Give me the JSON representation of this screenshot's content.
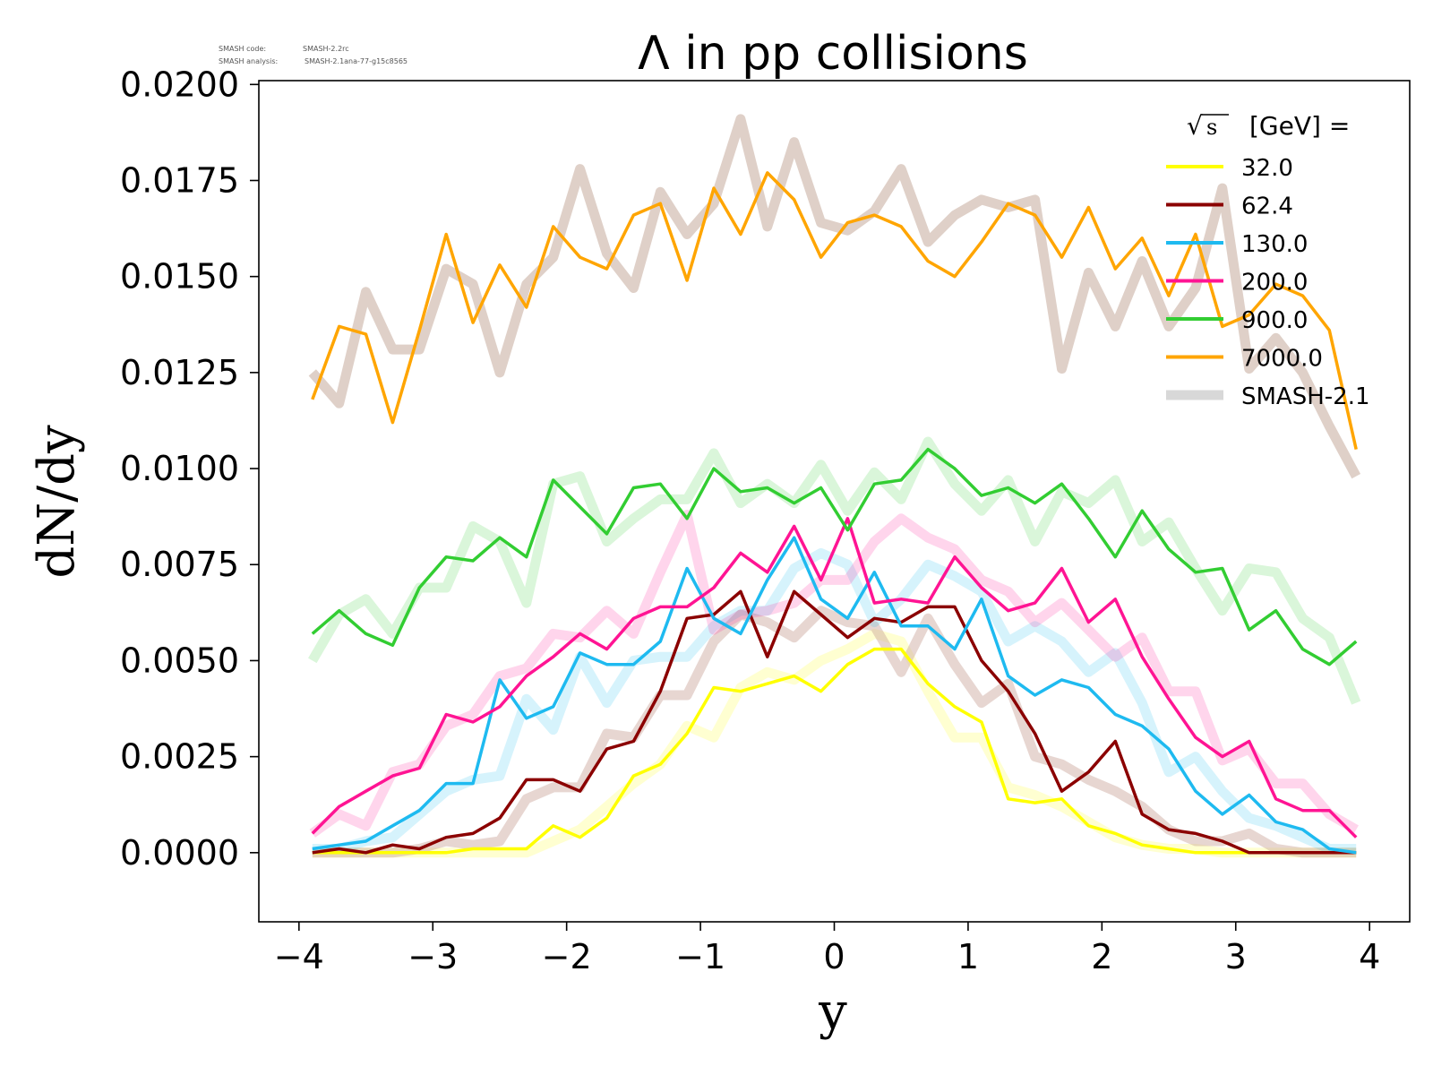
{
  "meta": {
    "code_label": "SMASH code:",
    "code_value": "SMASH-2.2rc",
    "analysis_label": "SMASH analysis:",
    "analysis_value": "SMASH-2.1ana-77-g15c8565"
  },
  "chart_data": {
    "type": "line",
    "title": "Λ in pp collisions",
    "xlabel": "y",
    "ylabel": "dN/dy",
    "xlim": [
      -4.3,
      4.3
    ],
    "ylim": [
      -0.0018,
      0.0201
    ],
    "xticks": [
      -4,
      -3,
      -2,
      -1,
      0,
      1,
      2,
      3,
      4
    ],
    "xtick_labels": [
      "−4",
      "−3",
      "−2",
      "−1",
      "0",
      "1",
      "2",
      "3",
      "4"
    ],
    "yticks": [
      0.0,
      0.0025,
      0.005,
      0.0075,
      0.01,
      0.0125,
      0.015,
      0.0175,
      0.02
    ],
    "ytick_labels": [
      "0.0000",
      "0.0025",
      "0.0050",
      "0.0075",
      "0.0100",
      "0.0125",
      "0.0150",
      "0.0175",
      "0.0200"
    ],
    "grid": false,
    "legend": {
      "placement": "top-right",
      "title_unit": "[GeV] =",
      "sqrt_symbol": "√",
      "sqrt_variable": "s",
      "reference_label": "SMASH-2.1",
      "reference_color": "#d8d8d8"
    },
    "x": [
      -3.9,
      -3.7,
      -3.5,
      -3.3,
      -3.1,
      -2.9,
      -2.7,
      -2.5,
      -2.3,
      -2.1,
      -1.9,
      -1.7,
      -1.5,
      -1.3,
      -1.1,
      -0.9,
      -0.7,
      -0.5,
      -0.3,
      -0.1,
      0.1,
      0.3,
      0.5,
      0.7,
      0.9,
      1.1,
      1.3,
      1.5,
      1.7,
      1.9,
      2.1,
      2.3,
      2.5,
      2.7,
      2.9,
      3.1,
      3.3,
      3.5,
      3.7,
      3.9
    ],
    "series": [
      {
        "name": "32.0",
        "color": "#ffff00",
        "values": [
          0.0,
          0.0,
          0.0,
          0.0,
          0.0,
          0.0,
          0.0001,
          0.0001,
          0.0001,
          0.0007,
          0.0004,
          0.0009,
          0.002,
          0.0023,
          0.0031,
          0.0043,
          0.0042,
          0.0044,
          0.0046,
          0.0042,
          0.0049,
          0.0053,
          0.0053,
          0.0044,
          0.0038,
          0.0034,
          0.0014,
          0.0013,
          0.0014,
          0.0007,
          0.0005,
          0.0002,
          0.0001,
          0.0,
          0.0,
          0.0,
          0.0,
          0.0,
          0.0,
          0.0
        ],
        "reference": [
          0.0,
          0.0,
          0.0,
          0.0,
          0.0,
          0.0,
          0.0,
          0.0,
          0.0,
          0.0003,
          0.0006,
          0.0012,
          0.0018,
          0.0023,
          0.0033,
          0.003,
          0.0043,
          0.0047,
          0.0045,
          0.005,
          0.0053,
          0.0057,
          0.0055,
          0.0042,
          0.003,
          0.003,
          0.0017,
          0.0015,
          0.0012,
          0.0008,
          0.0004,
          0.0002,
          0.0001,
          0.0001,
          0.0,
          0.0,
          0.0,
          0.0,
          0.0,
          0.0
        ]
      },
      {
        "name": "62.4",
        "color": "#8b0000",
        "values": [
          0.0,
          0.0001,
          0.0,
          0.0002,
          0.0001,
          0.0004,
          0.0005,
          0.0009,
          0.0019,
          0.0019,
          0.0016,
          0.0027,
          0.0029,
          0.0042,
          0.0061,
          0.0062,
          0.0068,
          0.0051,
          0.0068,
          0.0062,
          0.0056,
          0.0061,
          0.006,
          0.0064,
          0.0064,
          0.005,
          0.0042,
          0.0031,
          0.0016,
          0.0021,
          0.0029,
          0.001,
          0.0006,
          0.0005,
          0.0003,
          0.0,
          0.0,
          0.0,
          0.0,
          0.0
        ],
        "reference": [
          0.0,
          0.0,
          0.0,
          0.0,
          0.0001,
          0.0003,
          0.0002,
          0.0003,
          0.0014,
          0.0017,
          0.0017,
          0.0031,
          0.003,
          0.0041,
          0.0041,
          0.0055,
          0.0062,
          0.006,
          0.0056,
          0.0063,
          0.006,
          0.0059,
          0.0047,
          0.0061,
          0.0049,
          0.0039,
          0.0044,
          0.0025,
          0.0023,
          0.0019,
          0.0016,
          0.0012,
          0.0006,
          0.0003,
          0.0003,
          0.0005,
          0.0001,
          0.0,
          0.0,
          0.0
        ]
      },
      {
        "name": "130.0",
        "color": "#1ebaf0",
        "values": [
          0.0001,
          0.0002,
          0.0003,
          0.0007,
          0.0011,
          0.0018,
          0.0018,
          0.0045,
          0.0035,
          0.0038,
          0.0052,
          0.0049,
          0.0049,
          0.0055,
          0.0074,
          0.0061,
          0.0057,
          0.0071,
          0.0082,
          0.0066,
          0.0061,
          0.0073,
          0.0059,
          0.0059,
          0.0053,
          0.0066,
          0.0046,
          0.0041,
          0.0045,
          0.0043,
          0.0036,
          0.0033,
          0.0027,
          0.0016,
          0.001,
          0.0015,
          0.0008,
          0.0006,
          0.0001,
          0.0
        ],
        "reference": [
          0.0001,
          0.0001,
          0.0003,
          0.0004,
          0.001,
          0.0016,
          0.0019,
          0.002,
          0.004,
          0.0032,
          0.0051,
          0.0039,
          0.005,
          0.0051,
          0.0051,
          0.0059,
          0.0063,
          0.0063,
          0.0074,
          0.0078,
          0.0075,
          0.006,
          0.0066,
          0.0075,
          0.0072,
          0.0068,
          0.0055,
          0.0059,
          0.0055,
          0.0047,
          0.0052,
          0.0039,
          0.0021,
          0.0025,
          0.0016,
          0.0009,
          0.0007,
          0.0004,
          0.0001,
          0.0001
        ]
      },
      {
        "name": "200.0",
        "color": "#ff1493",
        "values": [
          0.0005,
          0.0012,
          0.0016,
          0.002,
          0.0022,
          0.0036,
          0.0034,
          0.0038,
          0.0046,
          0.0051,
          0.0057,
          0.0053,
          0.0061,
          0.0064,
          0.0064,
          0.0069,
          0.0078,
          0.0073,
          0.0085,
          0.0071,
          0.0087,
          0.0065,
          0.0066,
          0.0065,
          0.0077,
          0.0069,
          0.0063,
          0.0065,
          0.0074,
          0.006,
          0.0066,
          0.0051,
          0.004,
          0.003,
          0.0025,
          0.0029,
          0.0014,
          0.0011,
          0.0011,
          0.0004
        ],
        "reference": [
          0.0005,
          0.001,
          0.0007,
          0.0021,
          0.0023,
          0.0033,
          0.0036,
          0.0046,
          0.0048,
          0.0057,
          0.0056,
          0.0063,
          0.0057,
          0.0073,
          0.0088,
          0.0058,
          0.0062,
          0.0063,
          0.0065,
          0.0071,
          0.0071,
          0.0081,
          0.0087,
          0.0082,
          0.0079,
          0.0071,
          0.0068,
          0.006,
          0.0065,
          0.0058,
          0.0051,
          0.0056,
          0.0042,
          0.0042,
          0.0024,
          0.0027,
          0.0018,
          0.0018,
          0.001,
          0.0006
        ]
      },
      {
        "name": "900.0",
        "color": "#32cd32",
        "values": [
          0.0057,
          0.0063,
          0.0057,
          0.0054,
          0.0069,
          0.0077,
          0.0076,
          0.0082,
          0.0077,
          0.0097,
          0.009,
          0.0083,
          0.0095,
          0.0096,
          0.0087,
          0.01,
          0.0094,
          0.0095,
          0.0091,
          0.0095,
          0.0084,
          0.0096,
          0.0097,
          0.0105,
          0.01,
          0.0093,
          0.0095,
          0.0091,
          0.0096,
          0.0087,
          0.0077,
          0.0089,
          0.0079,
          0.0073,
          0.0074,
          0.0058,
          0.0063,
          0.0053,
          0.0049,
          0.0055
        ],
        "reference": [
          0.005,
          0.0062,
          0.0066,
          0.0057,
          0.0069,
          0.0069,
          0.0085,
          0.0081,
          0.0065,
          0.0096,
          0.0098,
          0.0081,
          0.0087,
          0.0092,
          0.0092,
          0.0104,
          0.0091,
          0.0096,
          0.0091,
          0.0101,
          0.0089,
          0.0099,
          0.0092,
          0.0107,
          0.0096,
          0.0089,
          0.0097,
          0.0081,
          0.0094,
          0.0091,
          0.0097,
          0.0081,
          0.0086,
          0.0074,
          0.0063,
          0.0074,
          0.0073,
          0.0061,
          0.0056,
          0.0039
        ]
      },
      {
        "name": "7000.0",
        "color": "#ffa500",
        "values": [
          0.0118,
          0.0137,
          0.0135,
          0.0112,
          0.0136,
          0.0161,
          0.0138,
          0.0153,
          0.0142,
          0.0163,
          0.0155,
          0.0152,
          0.0166,
          0.0169,
          0.0149,
          0.0173,
          0.0161,
          0.0177,
          0.017,
          0.0155,
          0.0164,
          0.0166,
          0.0163,
          0.0154,
          0.015,
          0.0159,
          0.0169,
          0.0166,
          0.0155,
          0.0168,
          0.0152,
          0.016,
          0.0145,
          0.0161,
          0.0137,
          0.014,
          0.0148,
          0.0145,
          0.0136,
          0.0105
        ],
        "reference": [
          0.0125,
          0.0117,
          0.0146,
          0.0131,
          0.0131,
          0.0152,
          0.0148,
          0.0125,
          0.0148,
          0.0155,
          0.0178,
          0.0156,
          0.0147,
          0.0172,
          0.0161,
          0.0169,
          0.0191,
          0.0163,
          0.0185,
          0.0164,
          0.0162,
          0.0167,
          0.0178,
          0.0159,
          0.0166,
          0.017,
          0.0168,
          0.017,
          0.0126,
          0.0151,
          0.0137,
          0.0154,
          0.0137,
          0.0147,
          0.0173,
          0.0126,
          0.0134,
          0.0125,
          0.0111,
          0.0098
        ]
      }
    ]
  }
}
